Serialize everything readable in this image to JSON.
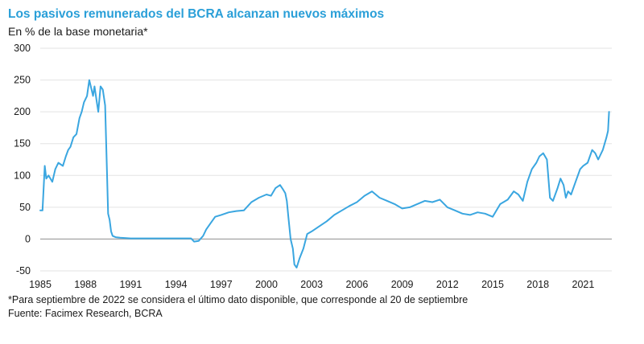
{
  "chart_data": {
    "type": "line",
    "title": "Los pasivos remunerados del BCRA alcanzan nuevos máximos",
    "subtitle": "En % de la base monetaria*",
    "xlabel": "",
    "ylabel": "",
    "ylim": [
      -50,
      300
    ],
    "yticks": [
      -50,
      0,
      50,
      100,
      150,
      200,
      250,
      300
    ],
    "xlim": [
      1985,
      2022.9
    ],
    "xticks": [
      1985,
      1988,
      1991,
      1994,
      1997,
      2000,
      2003,
      2006,
      2009,
      2012,
      2015,
      2018,
      2021
    ],
    "grid": "horizontal",
    "line_color": "#3aa6e0",
    "series": [
      {
        "name": "",
        "x": [
          1985.0,
          1985.15,
          1985.3,
          1985.4,
          1985.55,
          1985.8,
          1986.0,
          1986.2,
          1986.5,
          1986.7,
          1986.85,
          1987.0,
          1987.2,
          1987.4,
          1987.6,
          1987.75,
          1987.9,
          1988.1,
          1988.25,
          1988.35,
          1988.5,
          1988.6,
          1988.75,
          1988.85,
          1989.0,
          1989.15,
          1989.3,
          1989.42,
          1989.5,
          1989.6,
          1989.7,
          1989.8,
          1989.9,
          1990.0,
          1990.3,
          1991.0,
          1992.0,
          1993.0,
          1994.0,
          1995.0,
          1995.2,
          1995.5,
          1995.8,
          1996.0,
          1996.3,
          1996.6,
          1997.0,
          1997.5,
          1998.0,
          1998.5,
          1999.0,
          1999.5,
          2000.0,
          2000.3,
          2000.6,
          2000.9,
          2001.1,
          2001.25,
          2001.35,
          2001.45,
          2001.6,
          2001.75,
          2001.85,
          2002.0,
          2002.2,
          2002.45,
          2002.7,
          2003.0,
          2003.5,
          2004.0,
          2004.5,
          2005.0,
          2005.5,
          2006.0,
          2006.5,
          2007.0,
          2007.5,
          2008.0,
          2008.5,
          2009.0,
          2009.5,
          2010.0,
          2010.5,
          2011.0,
          2011.5,
          2012.0,
          2012.5,
          2013.0,
          2013.5,
          2014.0,
          2014.5,
          2015.0,
          2015.5,
          2016.0,
          2016.4,
          2016.7,
          2017.0,
          2017.3,
          2017.6,
          2017.9,
          2018.1,
          2018.35,
          2018.6,
          2018.8,
          2019.0,
          2019.3,
          2019.5,
          2019.7,
          2019.85,
          2020.0,
          2020.2,
          2020.5,
          2020.8,
          2021.0,
          2021.3,
          2021.6,
          2021.8,
          2022.0,
          2022.3,
          2022.55,
          2022.65,
          2022.72
        ],
        "values": [
          45,
          45,
          115,
          95,
          100,
          90,
          110,
          120,
          115,
          130,
          140,
          145,
          160,
          165,
          190,
          200,
          215,
          225,
          250,
          240,
          225,
          240,
          215,
          200,
          240,
          235,
          210,
          110,
          40,
          30,
          12,
          5,
          4,
          3,
          2,
          1,
          1,
          1,
          1,
          1,
          -4,
          -3,
          5,
          15,
          25,
          35,
          38,
          42,
          44,
          45,
          58,
          65,
          70,
          68,
          80,
          85,
          78,
          72,
          60,
          35,
          0,
          -15,
          -40,
          -45,
          -30,
          -15,
          8,
          12,
          20,
          28,
          38,
          45,
          52,
          58,
          68,
          75,
          65,
          60,
          55,
          48,
          50,
          55,
          60,
          58,
          62,
          50,
          45,
          40,
          38,
          42,
          40,
          35,
          55,
          62,
          75,
          70,
          60,
          90,
          110,
          120,
          130,
          135,
          125,
          65,
          60,
          80,
          95,
          85,
          65,
          75,
          70,
          90,
          110,
          115,
          120,
          140,
          135,
          125,
          140,
          160,
          170,
          200
        ]
      }
    ]
  },
  "footnote": "*Para septiembre de 2022 se considera el último dato disponible, que corresponde al 20 de septiembre",
  "source": "Fuente: Facimex Research, BCRA"
}
